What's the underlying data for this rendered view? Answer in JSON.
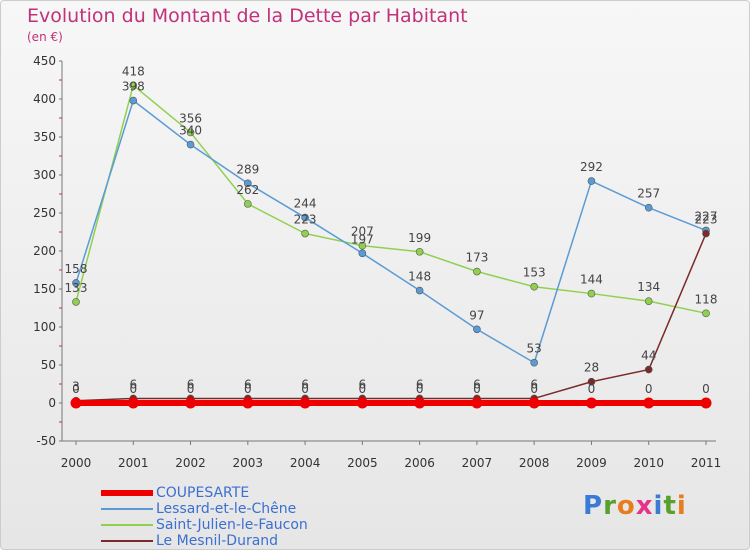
{
  "header": {
    "title": "Evolution du Montant de la Dette par Habitant",
    "subtitle": "(en €)"
  },
  "logo": {
    "letters": [
      "P",
      "r",
      "o",
      "x",
      "i",
      "t",
      "i"
    ],
    "colors": [
      "#3a7bd5",
      "#5aa02c",
      "#e87d1e",
      "#e5348a",
      "#3a7bd5",
      "#5aa02c",
      "#e87d1e"
    ]
  },
  "chart_data": {
    "type": "line",
    "title": "Evolution du Montant de la Dette par Habitant",
    "subtitle": "(en €)",
    "categories": [
      "2000",
      "2001",
      "2002",
      "2003",
      "2004",
      "2005",
      "2006",
      "2007",
      "2008",
      "2009",
      "2010",
      "2011"
    ],
    "ylim": [
      -50,
      450
    ],
    "yticks": [
      "-50",
      "0",
      "50",
      "100",
      "150",
      "200",
      "250",
      "300",
      "350",
      "400",
      "450"
    ],
    "grid": false,
    "legend_position": "bottom-left",
    "series": [
      {
        "name": "COUPESARTE",
        "color": "#ee0000",
        "values": [
          0,
          0,
          0,
          0,
          0,
          0,
          0,
          0,
          0,
          0,
          0,
          0
        ],
        "labels": [
          "0",
          "0",
          "0",
          "0",
          "0",
          "0",
          "0",
          "0",
          "0",
          "0",
          "0",
          "0"
        ]
      },
      {
        "name": "Lessard-et-le-Chêne",
        "color": "#5b9bd5",
        "values": [
          158,
          398,
          340,
          289,
          244,
          197,
          148,
          97,
          53,
          292,
          257,
          227
        ],
        "labels": [
          "158",
          "398",
          "340",
          "289",
          "244",
          "197",
          "148",
          "97",
          "53",
          "292",
          "257",
          "227"
        ]
      },
      {
        "name": "Saint-Julien-le-Faucon",
        "color": "#8fd14f",
        "values": [
          133,
          418,
          356,
          262,
          223,
          207,
          199,
          173,
          153,
          144,
          134,
          118
        ],
        "labels": [
          "133",
          "418",
          "356",
          "262",
          "223",
          "207",
          "199",
          "173",
          "153",
          "144",
          "134",
          "118"
        ]
      },
      {
        "name": "Le Mesnil-Durand",
        "color": "#7a2a2a",
        "values": [
          3,
          6,
          6,
          6,
          6,
          6,
          6,
          6,
          6,
          28,
          44,
          223
        ],
        "labels": [
          "3",
          "6",
          "6",
          "6",
          "6",
          "6",
          "6",
          "6",
          "6",
          "28",
          "44",
          "223"
        ]
      }
    ]
  }
}
